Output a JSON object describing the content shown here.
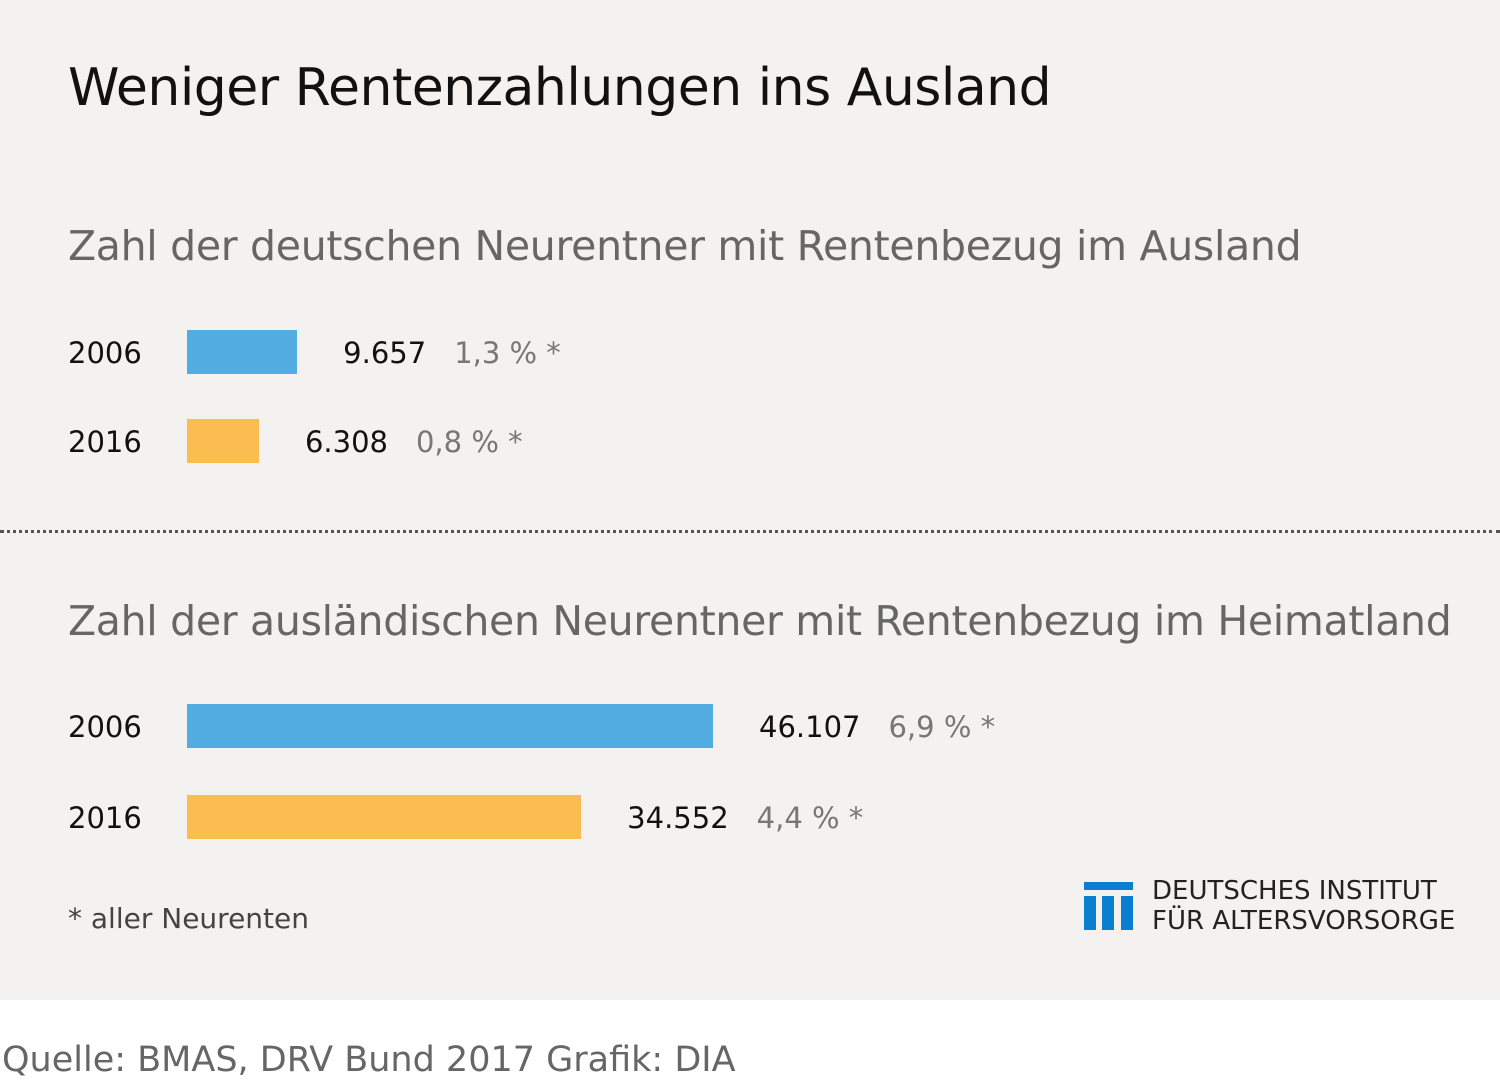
{
  "title": "Weniger Rentenzahlungen ins Ausland",
  "chart_data": [
    {
      "type": "bar",
      "orientation": "horizontal",
      "title": "Zahl der deutschen Neurentner mit Rentenbezug im Ausland",
      "categories": [
        "2006",
        "2016"
      ],
      "values": [
        9657,
        6308
      ],
      "value_labels": [
        "9.657",
        "6.308"
      ],
      "share_labels": [
        "1,3 % *",
        "0,8 % *"
      ],
      "colors": [
        "#52ade3",
        "#fbbd50"
      ]
    },
    {
      "type": "bar",
      "orientation": "horizontal",
      "title": "Zahl der ausländischen Neurentner mit Rentenbezug im Heimatland",
      "categories": [
        "2006",
        "2016"
      ],
      "values": [
        46107,
        34552
      ],
      "value_labels": [
        "46.107",
        "34.552"
      ],
      "share_labels": [
        "6,9 % *",
        "4,4 % *"
      ],
      "colors": [
        "#52ade3",
        "#fbbd50"
      ]
    }
  ],
  "footnote": "* aller Neurenten",
  "logo": {
    "line1": "DEUTSCHES INSTITUT",
    "line2": "FÜR ALTERSVORSORGE",
    "color": "#0a7fd0"
  },
  "source": "Quelle: BMAS, DRV Bund 2017  Grafik: DIA"
}
